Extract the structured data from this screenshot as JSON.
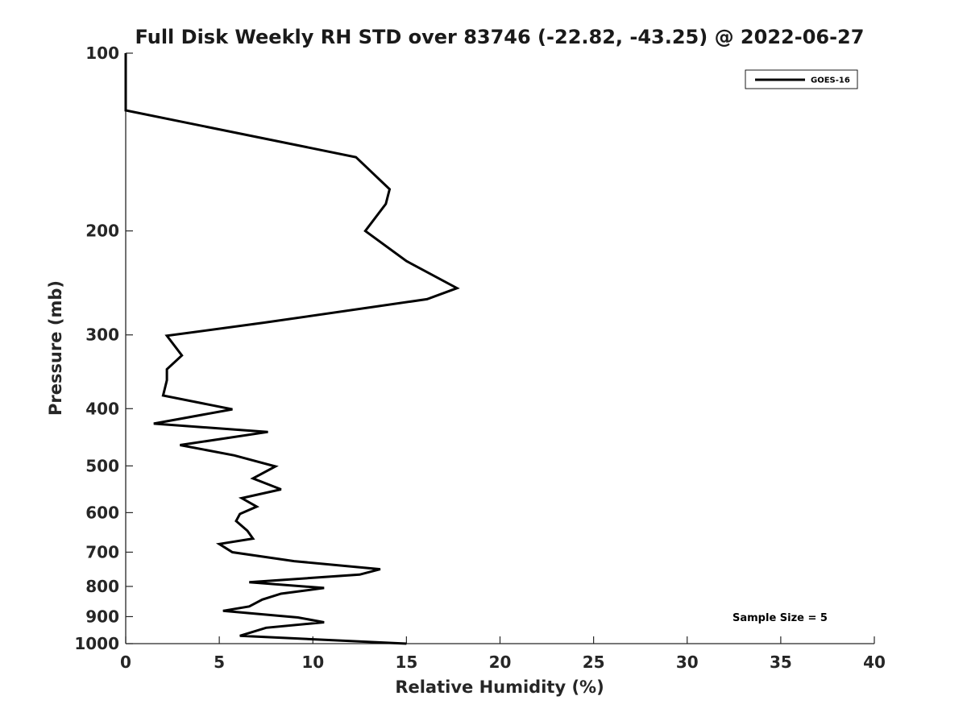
{
  "chart_data": {
    "type": "line",
    "title": "Full Disk Weekly RH STD over 83746 (-22.82, -43.25) @ 2022-06-27",
    "xlabel": "Relative Humidity (%)",
    "ylabel": "Pressure (mb)",
    "xlim": [
      0,
      40
    ],
    "ylim": [
      1000,
      100
    ],
    "y_scale": "log",
    "y_inverted": true,
    "grid": false,
    "legend_position": "top-right",
    "x_ticks": [
      0,
      5,
      10,
      15,
      20,
      25,
      30,
      35,
      40
    ],
    "y_ticks": [
      100,
      200,
      300,
      400,
      500,
      600,
      700,
      800,
      900,
      1000
    ],
    "series": [
      {
        "name": "GOES-16",
        "color": "#000000",
        "points": [
          [
            0.0,
            100
          ],
          [
            0.0,
            125
          ],
          [
            12.3,
            150
          ],
          [
            14.1,
            170
          ],
          [
            13.9,
            180
          ],
          [
            12.8,
            200
          ],
          [
            15.0,
            225
          ],
          [
            17.7,
            250
          ],
          [
            16.1,
            261
          ],
          [
            7.4,
            286
          ],
          [
            2.2,
            301
          ],
          [
            3.0,
            325
          ],
          [
            2.2,
            343
          ],
          [
            2.2,
            358
          ],
          [
            2.0,
            380
          ],
          [
            5.7,
            401
          ],
          [
            1.5,
            424
          ],
          [
            7.6,
            438
          ],
          [
            2.9,
            461
          ],
          [
            5.8,
            480
          ],
          [
            8.0,
            501
          ],
          [
            6.8,
            525
          ],
          [
            8.3,
            548
          ],
          [
            6.2,
            567
          ],
          [
            7.0,
            586
          ],
          [
            6.1,
            603
          ],
          [
            5.9,
            620
          ],
          [
            6.5,
            644
          ],
          [
            6.8,
            664
          ],
          [
            5.0,
            678
          ],
          [
            5.7,
            700
          ],
          [
            9.0,
            725
          ],
          [
            13.6,
            748
          ],
          [
            12.5,
            764
          ],
          [
            6.6,
            787
          ],
          [
            10.6,
            805
          ],
          [
            8.3,
            823
          ],
          [
            7.3,
            842
          ],
          [
            6.6,
            865
          ],
          [
            5.2,
            880
          ],
          [
            9.2,
            903
          ],
          [
            10.6,
            920
          ],
          [
            7.5,
            940
          ],
          [
            6.1,
            970
          ],
          [
            15.0,
            1000
          ]
        ]
      }
    ],
    "annotations": [
      "Sample Size = 5"
    ]
  }
}
